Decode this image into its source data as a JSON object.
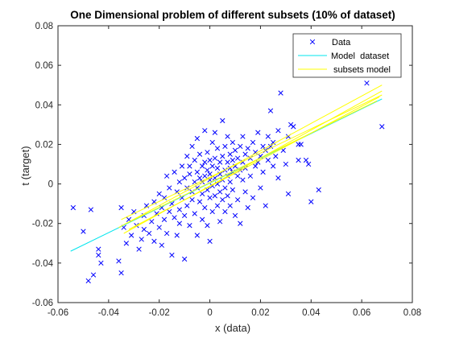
{
  "chart_data": {
    "type": "scatter",
    "title": "One Dimensional problem of different subsets (10% of dataset)",
    "xlabel": "x (data)",
    "ylabel": "t (target)",
    "xlim": [
      -0.06,
      0.08
    ],
    "ylim": [
      -0.06,
      0.08
    ],
    "xticks": [
      -0.06,
      -0.04,
      -0.02,
      0,
      0.02,
      0.04,
      0.06,
      0.08
    ],
    "yticks": [
      -0.06,
      -0.04,
      -0.02,
      0,
      0.02,
      0.04,
      0.06,
      0.08
    ],
    "xtick_labels": [
      "-0.06",
      "-0.04",
      "-0.02",
      "0",
      "0.02",
      "0.04",
      "0.06",
      "0.08"
    ],
    "ytick_labels": [
      "-0.06",
      "-0.04",
      "-0.02",
      "0",
      "0.02",
      "0.04",
      "0.06",
      "0.08"
    ],
    "grid": false,
    "legend_position": "top-right",
    "series": [
      {
        "name": "Data",
        "kind": "scatter",
        "marker": "x",
        "color": "#0000ff",
        "points": [
          [
            -0.054,
            -0.012
          ],
          [
            -0.05,
            -0.024
          ],
          [
            -0.048,
            -0.049
          ],
          [
            -0.047,
            -0.013
          ],
          [
            -0.046,
            -0.046
          ],
          [
            -0.044,
            -0.033
          ],
          [
            -0.044,
            -0.036
          ],
          [
            -0.043,
            -0.04
          ],
          [
            -0.036,
            -0.039
          ],
          [
            -0.035,
            -0.045
          ],
          [
            -0.035,
            -0.012
          ],
          [
            -0.034,
            -0.022
          ],
          [
            -0.033,
            -0.03
          ],
          [
            -0.032,
            -0.018
          ],
          [
            -0.031,
            -0.026
          ],
          [
            -0.03,
            -0.014
          ],
          [
            -0.029,
            -0.021
          ],
          [
            -0.028,
            -0.033
          ],
          [
            -0.027,
            -0.028
          ],
          [
            -0.026,
            -0.016
          ],
          [
            -0.026,
            -0.023
          ],
          [
            -0.025,
            -0.011
          ],
          [
            -0.024,
            -0.025
          ],
          [
            -0.023,
            -0.019
          ],
          [
            -0.022,
            -0.009
          ],
          [
            -0.022,
            -0.029
          ],
          [
            -0.021,
            -0.015
          ],
          [
            -0.02,
            -0.005
          ],
          [
            -0.02,
            -0.022
          ],
          [
            -0.019,
            -0.012
          ],
          [
            -0.019,
            -0.031
          ],
          [
            -0.018,
            -0.007
          ],
          [
            -0.018,
            -0.018
          ],
          [
            -0.017,
            0.004
          ],
          [
            -0.017,
            -0.025
          ],
          [
            -0.016,
            -0.002
          ],
          [
            -0.016,
            -0.014
          ],
          [
            -0.015,
            -0.01
          ],
          [
            -0.015,
            -0.036
          ],
          [
            -0.014,
            0.006
          ],
          [
            -0.014,
            -0.017
          ],
          [
            -0.013,
            -0.004
          ],
          [
            -0.013,
            -0.026
          ],
          [
            -0.012,
            0.001
          ],
          [
            -0.012,
            -0.013
          ],
          [
            -0.012,
            -0.02
          ],
          [
            -0.011,
            0.009
          ],
          [
            -0.011,
            -0.007
          ],
          [
            -0.01,
            0.003
          ],
          [
            -0.01,
            -0.016
          ],
          [
            -0.01,
            -0.038
          ],
          [
            -0.009,
            -0.002
          ],
          [
            -0.009,
            0.014
          ],
          [
            -0.009,
            -0.011
          ],
          [
            -0.008,
            0.005
          ],
          [
            -0.008,
            -0.021
          ],
          [
            -0.008,
            0.009
          ],
          [
            -0.007,
            -0.004
          ],
          [
            -0.007,
            -0.008
          ],
          [
            -0.007,
            0.019
          ],
          [
            -0.006,
            0.001
          ],
          [
            -0.006,
            -0.015
          ],
          [
            -0.006,
            0.012
          ],
          [
            -0.005,
            -0.002
          ],
          [
            -0.005,
            0.006
          ],
          [
            -0.005,
            -0.026
          ],
          [
            -0.005,
            0.023
          ],
          [
            -0.004,
            0.003
          ],
          [
            -0.004,
            -0.009
          ],
          [
            -0.004,
            0.015
          ],
          [
            -0.003,
            -0.005
          ],
          [
            -0.003,
            0.009
          ],
          [
            -0.003,
            -0.018
          ],
          [
            -0.003,
            0.001
          ],
          [
            -0.002,
            0.004
          ],
          [
            -0.002,
            -0.012
          ],
          [
            -0.002,
            0.011
          ],
          [
            -0.002,
            0.027
          ],
          [
            -0.001,
            -0.003
          ],
          [
            -0.001,
            0.007
          ],
          [
            -0.001,
            -0.021
          ],
          [
            -0.001,
            0.016
          ],
          [
            0.0,
            0.002
          ],
          [
            0.0,
            -0.007
          ],
          [
            0.0,
            0.012
          ],
          [
            0.0,
            -0.029
          ],
          [
            0.0,
            0.005
          ],
          [
            0.001,
            -0.001
          ],
          [
            0.001,
            0.009
          ],
          [
            0.001,
            -0.014
          ],
          [
            0.001,
            0.021
          ],
          [
            0.002,
            0.003
          ],
          [
            0.002,
            -0.006
          ],
          [
            0.002,
            0.013
          ],
          [
            0.002,
            0.026
          ],
          [
            0.003,
            0.0
          ],
          [
            0.003,
            0.008
          ],
          [
            0.003,
            -0.011
          ],
          [
            0.003,
            0.018
          ],
          [
            0.004,
            0.005
          ],
          [
            0.004,
            -0.004
          ],
          [
            0.004,
            0.011
          ],
          [
            0.004,
            -0.019
          ],
          [
            0.005,
            0.002
          ],
          [
            0.005,
            0.014
          ],
          [
            0.005,
            -0.008
          ],
          [
            0.005,
            0.032
          ],
          [
            0.006,
            0.007
          ],
          [
            0.006,
            -0.002
          ],
          [
            0.006,
            0.019
          ],
          [
            0.006,
            -0.014
          ],
          [
            0.007,
            0.004
          ],
          [
            0.007,
            0.011
          ],
          [
            0.007,
            -0.006
          ],
          [
            0.007,
            0.024
          ],
          [
            0.008,
            0.008
          ],
          [
            0.008,
            -0.011
          ],
          [
            0.008,
            0.015
          ],
          [
            0.008,
            0.001
          ],
          [
            0.009,
            0.012
          ],
          [
            0.009,
            -0.003
          ],
          [
            0.009,
            0.021
          ],
          [
            0.009,
            0.006
          ],
          [
            0.01,
            0.009
          ],
          [
            0.01,
            -0.016
          ],
          [
            0.01,
            0.017
          ],
          [
            0.011,
            0.004
          ],
          [
            0.011,
            0.013
          ],
          [
            0.011,
            -0.008
          ],
          [
            0.012,
            0.019
          ],
          [
            0.012,
            0.007
          ],
          [
            0.012,
            -0.02
          ],
          [
            0.013,
            0.011
          ],
          [
            0.013,
            0.002
          ],
          [
            0.013,
            0.024
          ],
          [
            0.014,
            0.015
          ],
          [
            0.014,
            -0.004
          ],
          [
            0.014,
            0.008
          ],
          [
            0.015,
            0.018
          ],
          [
            0.015,
            -0.012
          ],
          [
            0.016,
            0.013
          ],
          [
            0.016,
            0.004
          ],
          [
            0.017,
            0.021
          ],
          [
            0.017,
            -0.007
          ],
          [
            0.018,
            0.016
          ],
          [
            0.018,
            0.009
          ],
          [
            0.019,
            0.011
          ],
          [
            0.019,
            0.026
          ],
          [
            0.02,
            0.014
          ],
          [
            0.02,
            -0.002
          ],
          [
            0.021,
            0.019
          ],
          [
            0.021,
            0.006
          ],
          [
            0.022,
            0.017
          ],
          [
            0.022,
            -0.011
          ],
          [
            0.023,
            0.012
          ],
          [
            0.023,
            0.024
          ],
          [
            0.024,
            0.019
          ],
          [
            0.024,
            0.037
          ],
          [
            0.025,
            0.009
          ],
          [
            0.025,
            0.021
          ],
          [
            0.026,
            0.014
          ],
          [
            0.027,
            0.027
          ],
          [
            0.027,
            0.003
          ],
          [
            0.028,
            0.046
          ],
          [
            0.029,
            0.017
          ],
          [
            0.03,
            0.01
          ],
          [
            0.031,
            0.024
          ],
          [
            0.032,
            0.03
          ],
          [
            0.033,
            0.029
          ],
          [
            0.031,
            -0.005
          ],
          [
            0.035,
            0.012
          ],
          [
            0.035,
            0.02
          ],
          [
            0.036,
            0.02
          ],
          [
            0.038,
            0.012
          ],
          [
            0.039,
            0.01
          ],
          [
            0.04,
            -0.009
          ],
          [
            0.043,
            -0.003
          ],
          [
            0.062,
            0.051
          ],
          [
            0.068,
            0.029
          ]
        ]
      },
      {
        "name": "Model  dataset",
        "kind": "line",
        "color": "#00e5ee",
        "x": [
          -0.055,
          0.068
        ],
        "y": [
          -0.034,
          0.043
        ]
      },
      {
        "name": "subsets model",
        "kind": "line",
        "color": "#ffff00",
        "x": [
          -0.036,
          0.068
        ],
        "y": [
          -0.022,
          0.05
        ]
      },
      {
        "kind": "line",
        "color": "#ffff00",
        "x": [
          -0.035,
          0.068
        ],
        "y": [
          -0.018,
          0.045
        ]
      },
      {
        "kind": "line",
        "color": "#ffff00",
        "x": [
          -0.034,
          0.068
        ],
        "y": [
          -0.025,
          0.047
        ]
      },
      {
        "kind": "line",
        "color": "#ffff00",
        "x": [
          -0.033,
          0.066
        ],
        "y": [
          -0.02,
          0.042
        ]
      },
      {
        "kind": "line",
        "color": "#ffff00",
        "x": [
          -0.032,
          0.067
        ],
        "y": [
          -0.023,
          0.044
        ]
      }
    ],
    "legend": [
      {
        "label": "Data",
        "marker": "x",
        "color": "#0000ff"
      },
      {
        "label": "Model  dataset",
        "marker": "line",
        "color": "#00e5ee"
      },
      {
        "label": "subsets model",
        "marker": "line",
        "color": "#ffff00"
      }
    ]
  }
}
